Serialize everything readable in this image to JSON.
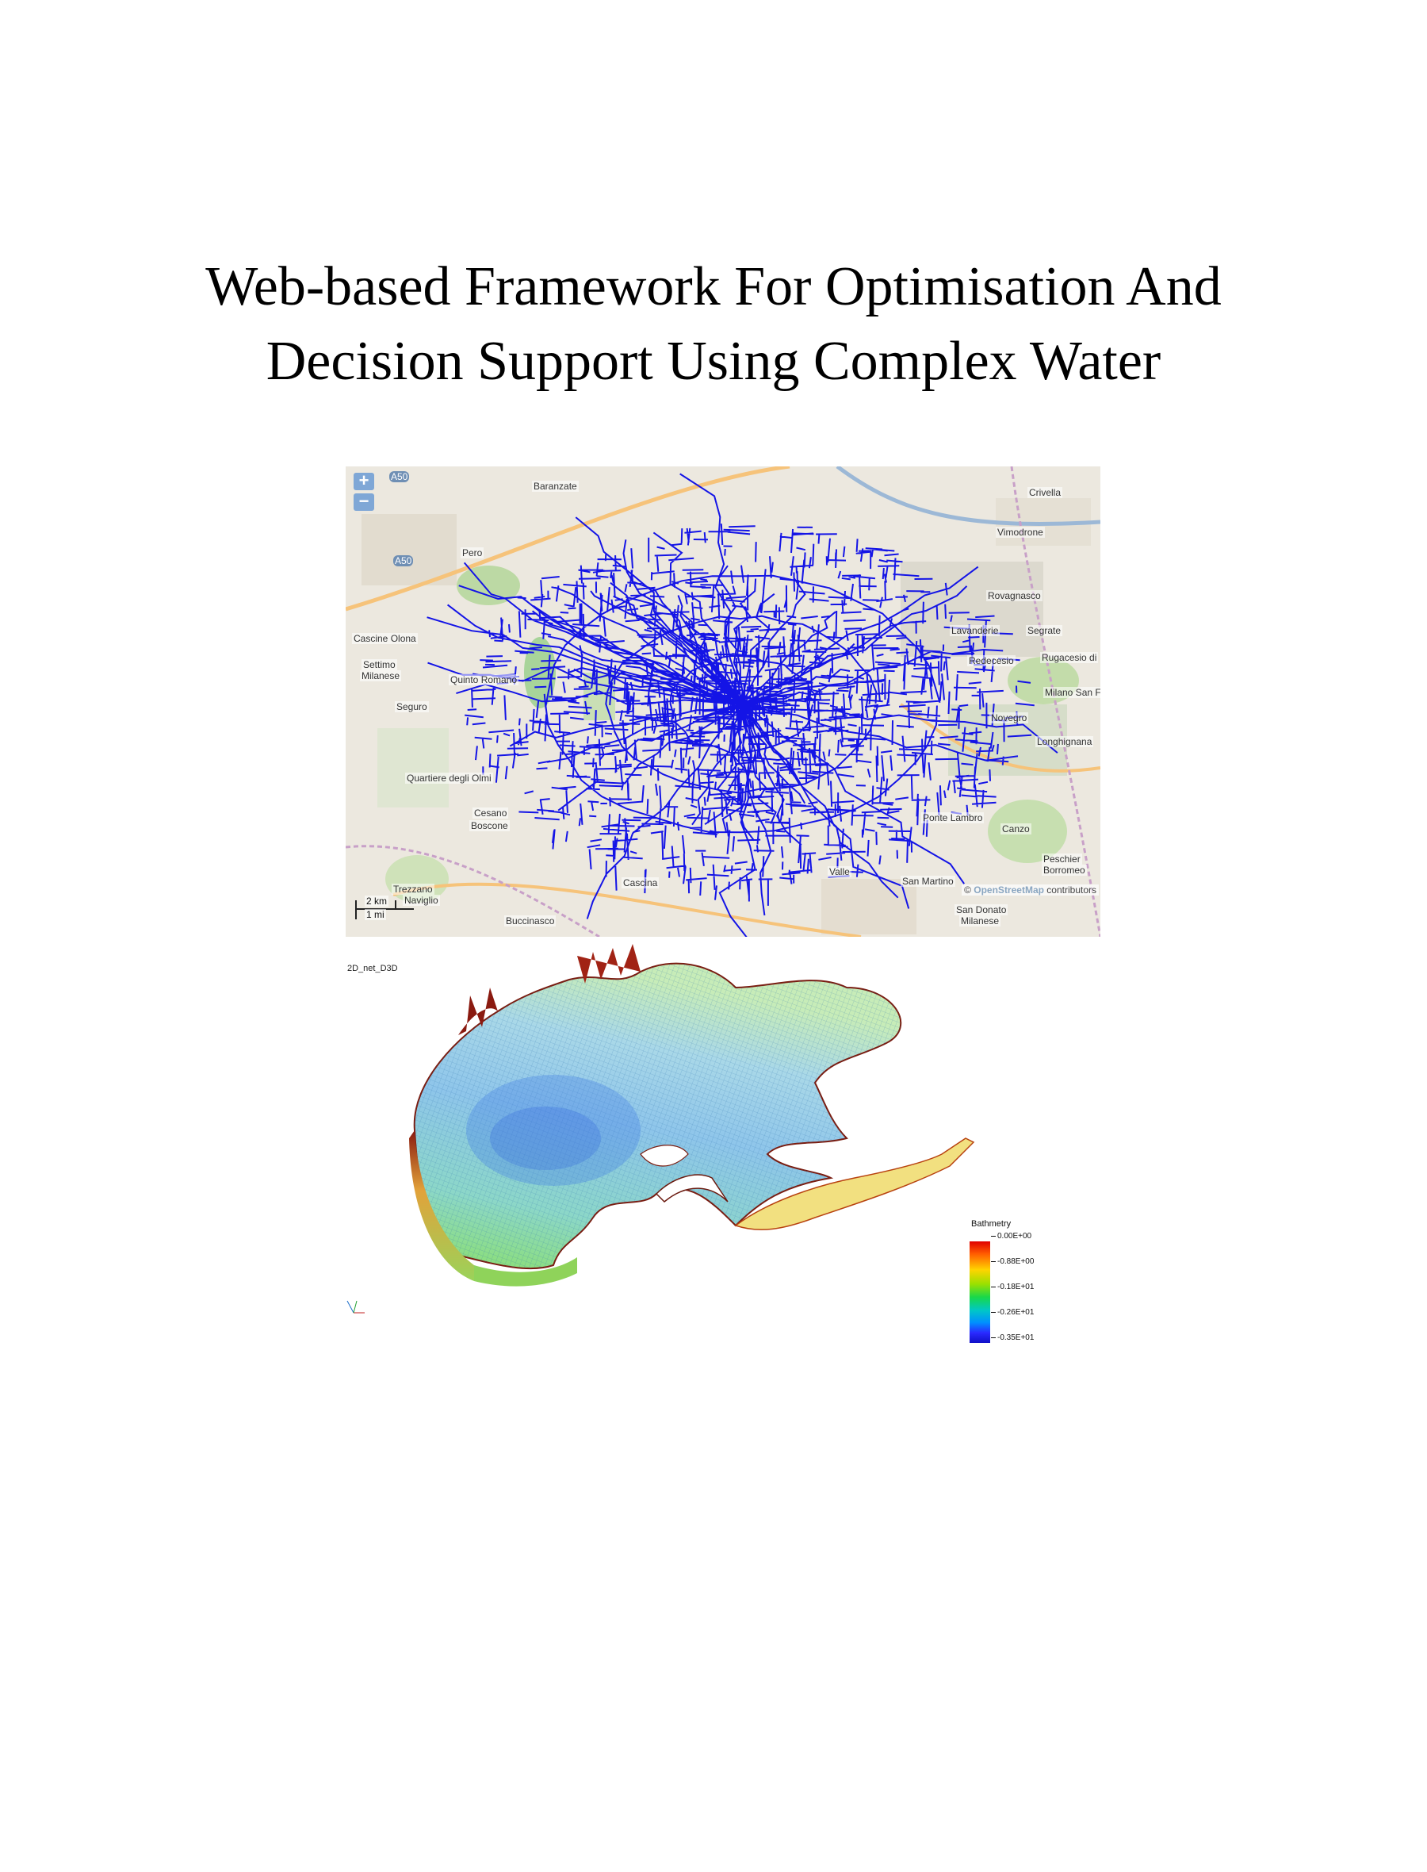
{
  "document": {
    "title_line1": "Web-based Framework For Optimisation And",
    "title_line2": "Decision Support Using Complex Water"
  },
  "map": {
    "zoom_in": "+",
    "zoom_out": "−",
    "scale_km": "2 km",
    "scale_mi": "1 mi",
    "attribution_symbol": "©",
    "attribution_osm": "OpenStreetMap",
    "attribution_rest": "contributors",
    "network_color": "#1414e6",
    "labels": {
      "baranzate": "Baranzate",
      "pero": "Pero",
      "a50_top": "A50",
      "a50_mid": "A50",
      "cascine_olona": "Cascine Olona",
      "settimo": "Settimo",
      "milanese": "Milanese",
      "seguro": "Seguro",
      "crivella": "Crivella",
      "vimodrone": "Vimodrone",
      "rovagnasco": "Rovagnasco",
      "lavanderie": "Lavanderie",
      "segrate": "Segrate",
      "redecesio": "Redecesio",
      "rugacesio": "Rugacesio di",
      "milano_san_f": "Milano San F",
      "novegro": "Novegro",
      "longhignana": "Longhignana",
      "canzo": "Canzo",
      "ponte_lambro": "Ponte Lambro",
      "peschiera": "Peschier",
      "borromeo": "Borromeo",
      "san_donato": "San Donato",
      "san_donato_milanese": "Milanese",
      "trezzano": "Trezzano",
      "naviglio": "Naviglio",
      "buccinasco": "Buccinasco",
      "cesano": "Cesano",
      "boscone": "Boscone",
      "quinto_romano": "Quinto Romano",
      "quartiere_olmi": "Quartiere degli Olmi",
      "cascina": "Cascina",
      "valle": "Valle",
      "san_martino": "San Martino"
    }
  },
  "bathymetry": {
    "plot_name": "2D_net_D3D",
    "legend_title": "Bathmetry",
    "legend_ticks": [
      "0.00E+00",
      "-0.88E+00",
      "-0.18E+01",
      "-0.26E+01",
      "-0.35E+01"
    ]
  }
}
